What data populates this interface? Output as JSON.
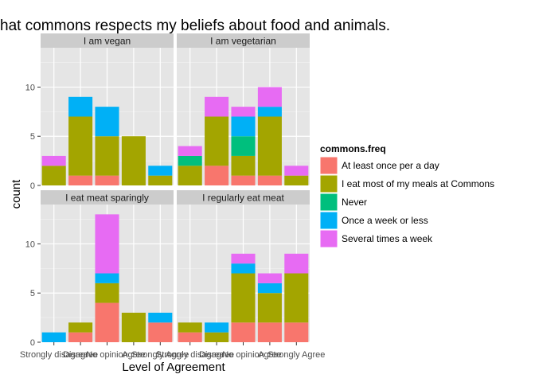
{
  "chart_data": {
    "type": "bar",
    "stacked": true,
    "title": "hat commons respects my beliefs about food and animals.",
    "xlabel": "Level of Agreement",
    "ylabel": "count",
    "ylim": [
      0,
      14
    ],
    "yticks": [
      0,
      5,
      10
    ],
    "categories": [
      "Strongly disagree",
      "Disagree",
      "No opinion",
      "Agree",
      "Strongly Agree"
    ],
    "legend": {
      "title": "commons.freq",
      "placement": "right"
    },
    "series": [
      {
        "name": "At least once per a day",
        "color": "#F8766D"
      },
      {
        "name": "I eat most of my meals at Commons",
        "color": "#A3A500"
      },
      {
        "name": "Never",
        "color": "#00BF7D"
      },
      {
        "name": "Once a week or less",
        "color": "#00B0F6"
      },
      {
        "name": "Several times a week",
        "color": "#E76BF3"
      }
    ],
    "panels": [
      {
        "label": "I am vegan",
        "values": [
          [
            0,
            1,
            1,
            0,
            0
          ],
          [
            2,
            6,
            4,
            5,
            1
          ],
          [
            0,
            0,
            0,
            0,
            0
          ],
          [
            0,
            2,
            3,
            0,
            1
          ],
          [
            1,
            0,
            0,
            0,
            0
          ]
        ]
      },
      {
        "label": "I am vegetarian",
        "values": [
          [
            0,
            2,
            1,
            1,
            0
          ],
          [
            2,
            5,
            2,
            6,
            1
          ],
          [
            1,
            0,
            2,
            0,
            0
          ],
          [
            0,
            0,
            2,
            1,
            0
          ],
          [
            1,
            2,
            1,
            2,
            1
          ]
        ]
      },
      {
        "label": "I eat meat sparingly",
        "values": [
          [
            0,
            1,
            4,
            0,
            2
          ],
          [
            0,
            1,
            2,
            3,
            0
          ],
          [
            0,
            0,
            0,
            0,
            0
          ],
          [
            1,
            0,
            1,
            0,
            1
          ],
          [
            0,
            0,
            6,
            0,
            0
          ]
        ]
      },
      {
        "label": "I regularly eat meat",
        "values": [
          [
            1,
            0,
            2,
            2,
            2
          ],
          [
            1,
            1,
            5,
            3,
            5
          ],
          [
            0,
            0,
            0,
            0,
            0
          ],
          [
            0,
            1,
            1,
            1,
            0
          ],
          [
            0,
            0,
            1,
            1,
            2
          ]
        ]
      }
    ]
  }
}
